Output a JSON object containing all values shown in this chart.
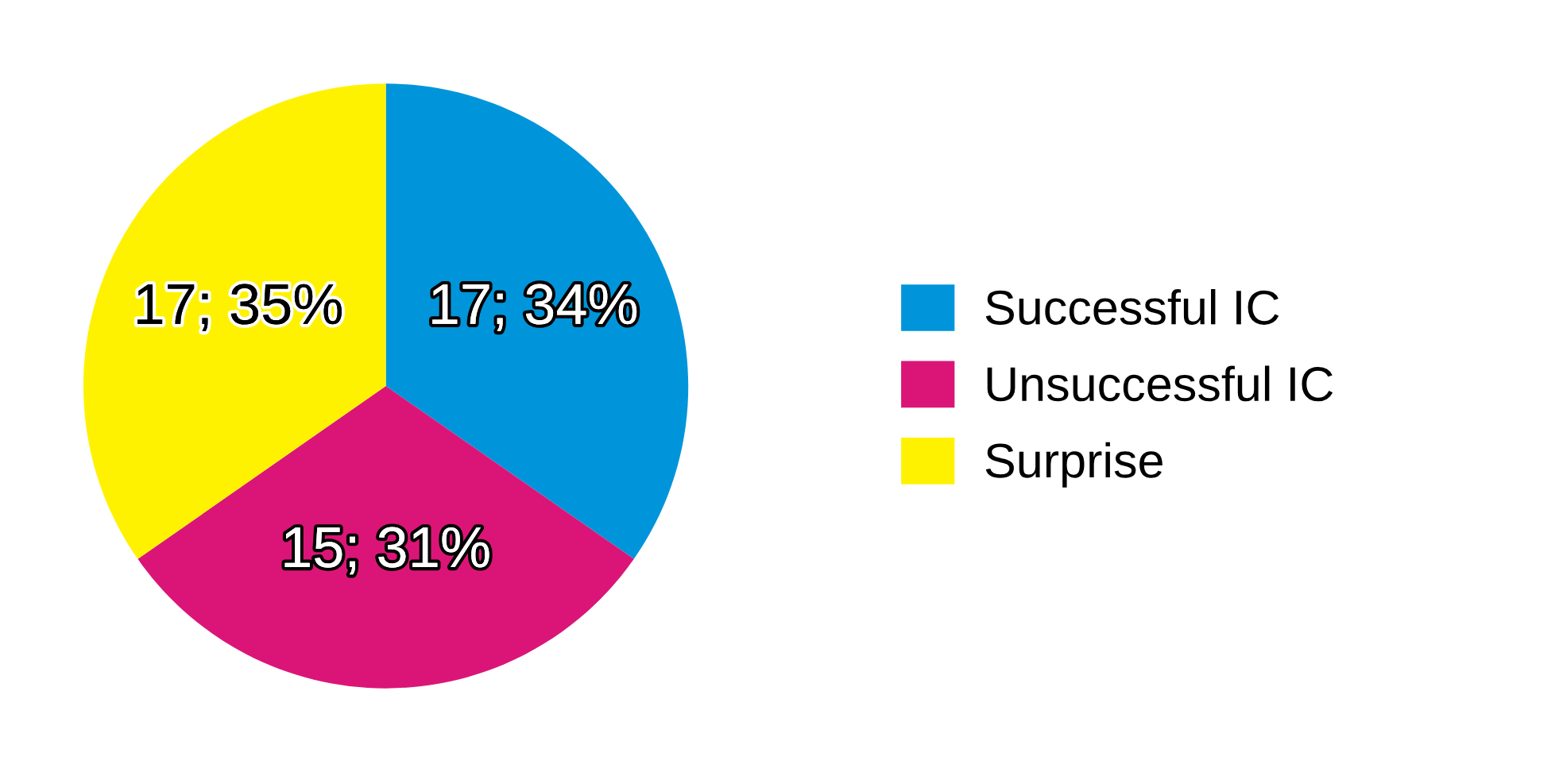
{
  "chart_data": {
    "type": "pie",
    "categories": [
      "Successful IC",
      "Unsuccessful IC",
      "Surprise"
    ],
    "values": [
      17,
      15,
      17
    ],
    "value_labels": [
      "17; 34%",
      "15; 31%",
      "17; 35%"
    ],
    "colors": [
      "#0095da",
      "#db1577",
      "#fff200"
    ],
    "legend": "right"
  }
}
